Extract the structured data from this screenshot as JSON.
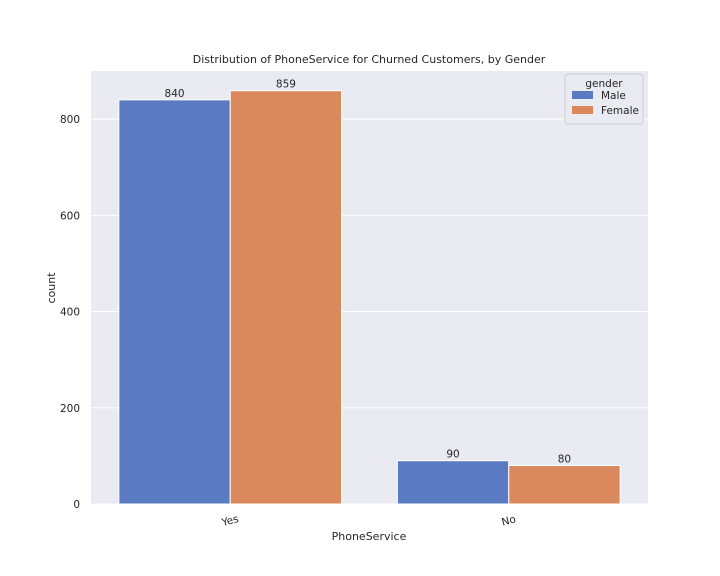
{
  "chart_data": {
    "type": "bar",
    "title": "Distribution of PhoneService for Churned Customers, by Gender",
    "xlabel": "PhoneService",
    "ylabel": "count",
    "categories": [
      "Yes",
      "No"
    ],
    "ylim": [
      0,
      900
    ],
    "yticks": [
      0,
      200,
      400,
      600,
      800
    ],
    "grid": true,
    "legend": {
      "title": "gender",
      "position": "top-right"
    },
    "series": [
      {
        "name": "Male",
        "color": "#5a7bc2",
        "values": [
          840,
          90
        ]
      },
      {
        "name": "Female",
        "color": "#d9895c",
        "values": [
          859,
          80
        ]
      }
    ],
    "colors": {
      "plot_bg": "#eaeaf2",
      "grid": "#ffffff"
    }
  }
}
